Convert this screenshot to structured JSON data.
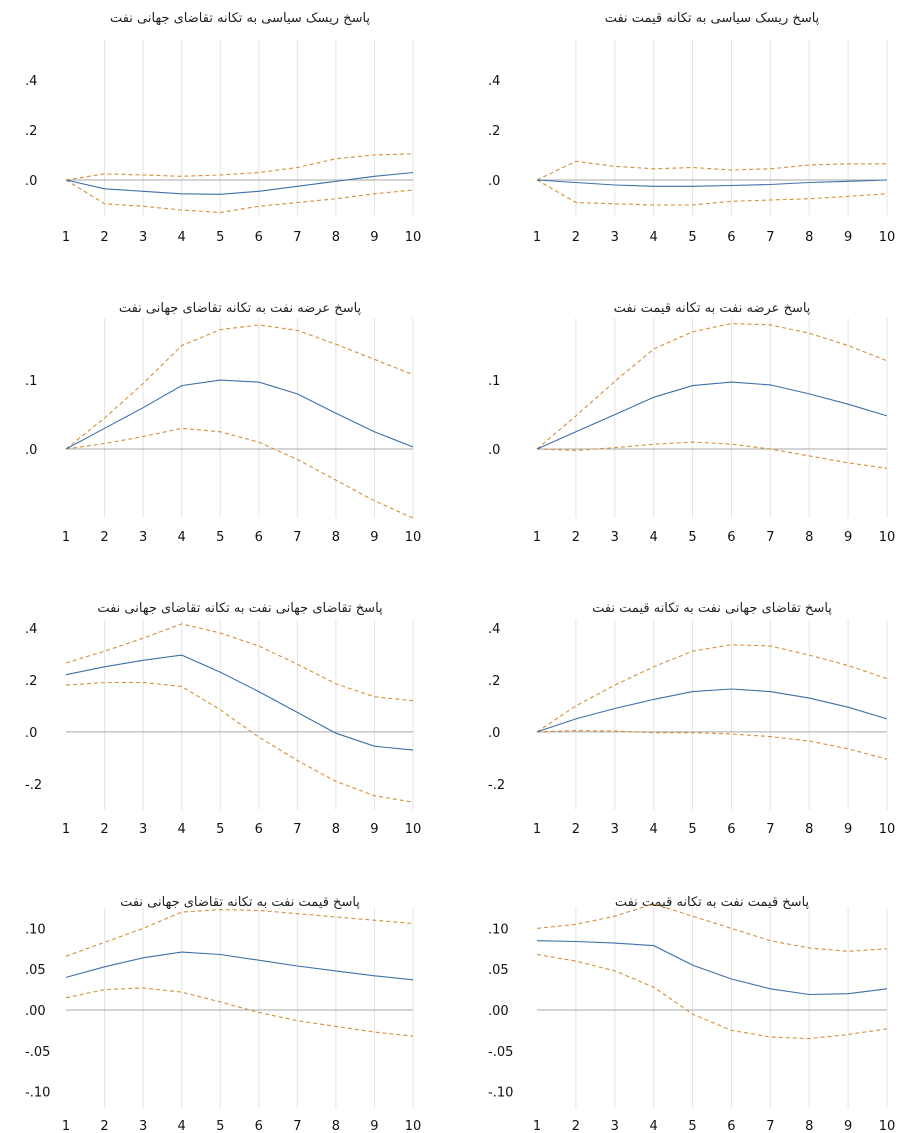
{
  "colors": {
    "response": "#3f6fa8",
    "band": "#d4903a",
    "grid": "#e4e4e4",
    "zero": "#a9a9a9"
  },
  "chart_data": [
    {
      "type": "line",
      "title": "پاسخ ریسک سیاسی به تکانه تقاضای جهانی نفت",
      "x": [
        1,
        2,
        3,
        4,
        5,
        6,
        7,
        8,
        9,
        10
      ],
      "ylim": [
        -0.14,
        0.56
      ],
      "yticks": [
        {
          "v": 0.4,
          "label": ".4"
        },
        {
          "v": 0.2,
          "label": ".2"
        },
        {
          "v": 0.0,
          "label": ".0"
        }
      ],
      "response": [
        0.0,
        -0.035,
        -0.045,
        -0.055,
        -0.057,
        -0.045,
        -0.025,
        -0.005,
        0.015,
        0.03
      ],
      "upper": [
        0.0,
        0.025,
        0.02,
        0.015,
        0.02,
        0.03,
        0.05,
        0.085,
        0.1,
        0.105
      ],
      "lower": [
        0.0,
        -0.095,
        -0.105,
        -0.12,
        -0.13,
        -0.105,
        -0.09,
        -0.075,
        -0.055,
        -0.04
      ],
      "grid": true
    },
    {
      "type": "line",
      "title": "پاسخ ریسک سیاسی به تکانه قیمت نفت",
      "x": [
        1,
        2,
        3,
        4,
        5,
        6,
        7,
        8,
        9,
        10
      ],
      "ylim": [
        -0.14,
        0.56
      ],
      "yticks": [
        {
          "v": 0.4,
          "label": ".4"
        },
        {
          "v": 0.2,
          "label": ".2"
        },
        {
          "v": 0.0,
          "label": ".0"
        }
      ],
      "response": [
        0.0,
        -0.01,
        -0.02,
        -0.025,
        -0.025,
        -0.022,
        -0.018,
        -0.01,
        -0.005,
        0.0
      ],
      "upper": [
        0.0,
        0.075,
        0.055,
        0.045,
        0.05,
        0.04,
        0.045,
        0.06,
        0.065,
        0.065
      ],
      "lower": [
        0.0,
        -0.09,
        -0.095,
        -0.1,
        -0.1,
        -0.085,
        -0.08,
        -0.075,
        -0.065,
        -0.055
      ],
      "grid": true
    },
    {
      "type": "line",
      "title": "پاسخ عرضه نفت به تکانه تقاضای جهانی نفت",
      "x": [
        1,
        2,
        3,
        4,
        5,
        6,
        7,
        8,
        9,
        10
      ],
      "ylim": [
        -0.1,
        0.19
      ],
      "yticks": [
        {
          "v": 0.1,
          "label": ".1"
        },
        {
          "v": 0.0,
          "label": ".0"
        }
      ],
      "response": [
        0.0,
        0.03,
        0.06,
        0.092,
        0.1,
        0.097,
        0.08,
        0.052,
        0.025,
        0.003
      ],
      "upper": [
        0.0,
        0.045,
        0.095,
        0.15,
        0.173,
        0.18,
        0.172,
        0.152,
        0.13,
        0.108
      ],
      "lower": [
        0.0,
        0.008,
        0.018,
        0.03,
        0.025,
        0.01,
        -0.015,
        -0.045,
        -0.075,
        -0.1
      ],
      "grid": true
    },
    {
      "type": "line",
      "title": "پاسخ عرضه نفت به تکانه قیمت نفت",
      "x": [
        1,
        2,
        3,
        4,
        5,
        6,
        7,
        8,
        9,
        10
      ],
      "ylim": [
        -0.1,
        0.19
      ],
      "yticks": [
        {
          "v": 0.1,
          "label": ".1"
        },
        {
          "v": 0.0,
          "label": ".0"
        }
      ],
      "response": [
        0.0,
        0.025,
        0.05,
        0.075,
        0.092,
        0.097,
        0.093,
        0.08,
        0.065,
        0.048
      ],
      "upper": [
        0.0,
        0.048,
        0.098,
        0.145,
        0.17,
        0.182,
        0.18,
        0.168,
        0.15,
        0.128
      ],
      "lower": [
        0.0,
        -0.002,
        0.002,
        0.007,
        0.01,
        0.007,
        0.0,
        -0.01,
        -0.02,
        -0.028
      ],
      "grid": true
    },
    {
      "type": "line",
      "title": "پاسخ تقاضای جهانی نفت به تکانه تقاضای جهانی نفت",
      "x": [
        1,
        2,
        3,
        4,
        5,
        6,
        7,
        8,
        9,
        10
      ],
      "ylim": [
        -0.3,
        0.43
      ],
      "yticks": [
        {
          "v": 0.4,
          "label": ".4"
        },
        {
          "v": 0.2,
          "label": ".2"
        },
        {
          "v": 0.0,
          "label": ".0"
        },
        {
          "v": -0.2,
          "label": "-.2"
        }
      ],
      "response": [
        0.22,
        0.25,
        0.275,
        0.295,
        0.23,
        0.155,
        0.075,
        -0.005,
        -0.055,
        -0.07
      ],
      "upper": [
        0.265,
        0.31,
        0.36,
        0.415,
        0.38,
        0.33,
        0.26,
        0.185,
        0.135,
        0.12
      ],
      "lower": [
        0.18,
        0.19,
        0.19,
        0.175,
        0.085,
        -0.02,
        -0.11,
        -0.19,
        -0.245,
        -0.27
      ],
      "grid": true
    },
    {
      "type": "line",
      "title": "پاسخ تقاضای جهانی نفت به تکانه قیمت نفت",
      "x": [
        1,
        2,
        3,
        4,
        5,
        6,
        7,
        8,
        9,
        10
      ],
      "ylim": [
        -0.3,
        0.43
      ],
      "yticks": [
        {
          "v": 0.4,
          "label": ".4"
        },
        {
          "v": 0.2,
          "label": ".2"
        },
        {
          "v": 0.0,
          "label": ".0"
        },
        {
          "v": -0.2,
          "label": "-.2"
        }
      ],
      "response": [
        0.0,
        0.05,
        0.09,
        0.125,
        0.155,
        0.165,
        0.155,
        0.13,
        0.095,
        0.05
      ],
      "upper": [
        0.0,
        0.1,
        0.18,
        0.25,
        0.31,
        0.335,
        0.33,
        0.295,
        0.255,
        0.205
      ],
      "lower": [
        0.0,
        0.005,
        0.003,
        -0.003,
        -0.003,
        -0.008,
        -0.018,
        -0.035,
        -0.065,
        -0.105
      ],
      "grid": true
    },
    {
      "type": "line",
      "title": "پاسخ قیمت نفت به تکانه تقاضای جهانی نفت",
      "x": [
        1,
        2,
        3,
        4,
        5,
        6,
        7,
        8,
        9,
        10
      ],
      "ylim": [
        -0.12,
        0.125
      ],
      "yticks": [
        {
          "v": 0.1,
          "label": ".10"
        },
        {
          "v": 0.05,
          "label": ".05"
        },
        {
          "v": 0.0,
          "label": ".00"
        },
        {
          "v": -0.05,
          "label": "-.05"
        },
        {
          "v": -0.1,
          "label": "-.10"
        }
      ],
      "response": [
        0.04,
        0.053,
        0.064,
        0.071,
        0.068,
        0.061,
        0.054,
        0.048,
        0.042,
        0.037
      ],
      "upper": [
        0.066,
        0.083,
        0.1,
        0.12,
        0.123,
        0.122,
        0.118,
        0.114,
        0.11,
        0.106
      ],
      "lower": [
        0.015,
        0.025,
        0.027,
        0.022,
        0.01,
        -0.003,
        -0.013,
        -0.02,
        -0.027,
        -0.032
      ],
      "grid": true
    },
    {
      "type": "line",
      "title": "پاسخ قیمت نفت به تکانه قیمت نفت",
      "x": [
        1,
        2,
        3,
        4,
        5,
        6,
        7,
        8,
        9,
        10
      ],
      "ylim": [
        -0.12,
        0.125
      ],
      "yticks": [
        {
          "v": 0.1,
          "label": ".10"
        },
        {
          "v": 0.05,
          "label": ".05"
        },
        {
          "v": 0.0,
          "label": ".00"
        },
        {
          "v": -0.05,
          "label": "-.05"
        },
        {
          "v": -0.1,
          "label": "-.10"
        }
      ],
      "response": [
        0.085,
        0.084,
        0.082,
        0.079,
        0.055,
        0.038,
        0.026,
        0.019,
        0.02,
        0.026
      ],
      "upper": [
        0.1,
        0.105,
        0.115,
        0.13,
        0.115,
        0.1,
        0.085,
        0.076,
        0.072,
        0.075
      ],
      "lower": [
        0.068,
        0.06,
        0.048,
        0.028,
        -0.005,
        -0.025,
        -0.033,
        -0.035,
        -0.03,
        -0.023
      ],
      "grid": true
    }
  ]
}
